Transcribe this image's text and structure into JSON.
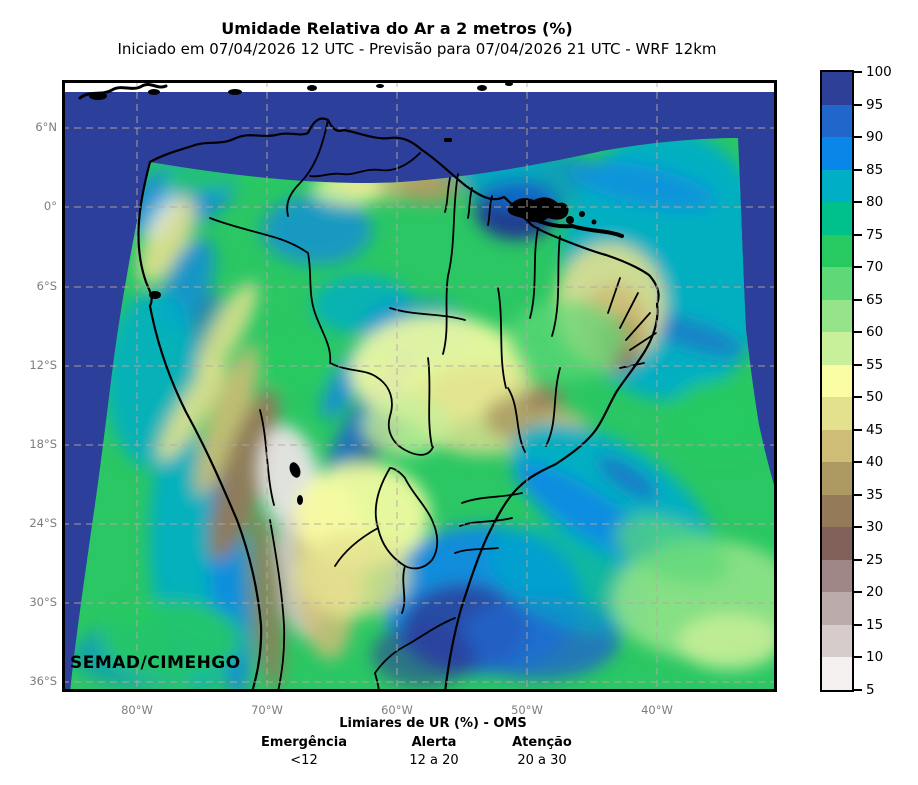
{
  "header": {
    "title": "Umidade Relativa do Ar a 2 metros (%)",
    "subtitle": "Iniciado em 07/04/2026 12 UTC - Previsão para 07/04/2026 21 UTC - WRF 12km"
  },
  "map": {
    "watermark": "SEMAD/CIMEHGO",
    "y_axis_labels": [
      "6°N",
      "0°",
      "6°S",
      "12°S",
      "18°S",
      "24°S",
      "30°S",
      "36°S"
    ],
    "x_axis_labels": [
      "80°W",
      "70°W",
      "60°W",
      "50°W",
      "40°W"
    ],
    "ocean_out_of_domain_color": "#2c3f9b"
  },
  "colorbar": {
    "tick_labels": [
      "100",
      "95",
      "90",
      "85",
      "80",
      "75",
      "70",
      "65",
      "60",
      "55",
      "50",
      "45",
      "40",
      "35",
      "30",
      "25",
      "20",
      "15",
      "10",
      "5"
    ],
    "segment_colors_top_to_bottom": [
      "#2d3f96",
      "#2166cb",
      "#0a86e8",
      "#00aec6",
      "#00c08b",
      "#27ca60",
      "#5fd877",
      "#96e489",
      "#c8ef99",
      "#fafda4",
      "#e3e08e",
      "#cdbd76",
      "#ad9a63",
      "#957a59",
      "#82605a",
      "#a08787",
      "#bcabab",
      "#d7cccc",
      "#f5f1f1"
    ]
  },
  "threshold_legend": {
    "title": "Limiares de UR (%) - OMS",
    "items": [
      {
        "label": "Emergência",
        "value": "<12"
      },
      {
        "label": "Alerta",
        "value": "12 a 20"
      },
      {
        "label": "Atenção",
        "value": "20 a 30"
      }
    ]
  }
}
